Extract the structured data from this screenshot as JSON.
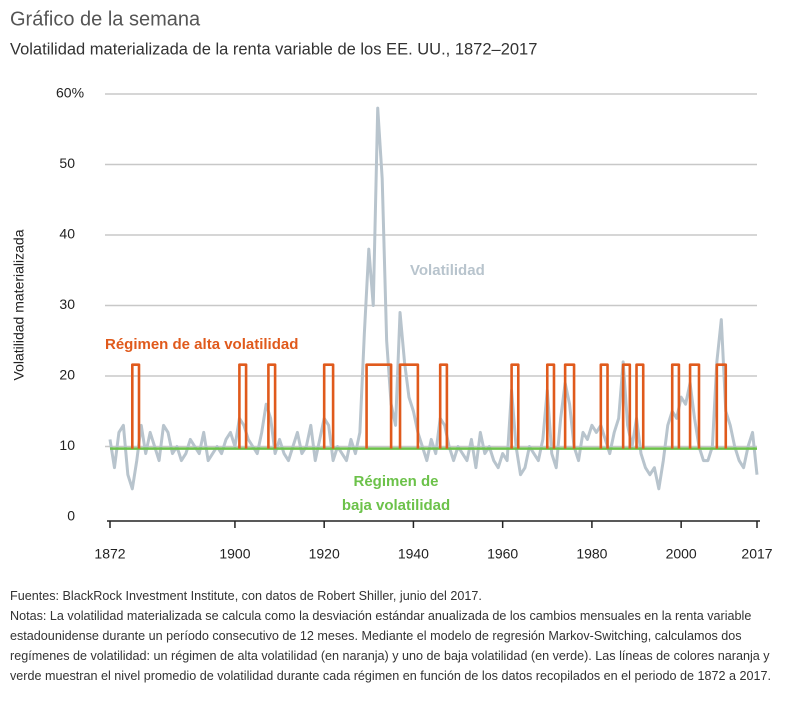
{
  "chart_data": {
    "type": "line",
    "title": "Gráfico de la semana",
    "subtitle": "Volatilidad materializada de la renta variable de los EE. UU., 1872–2017",
    "y_label": "Volatilidad materializada",
    "xlim": [
      1872,
      2017
    ],
    "xticks": [
      1872,
      1900,
      1920,
      1940,
      1960,
      1980,
      2000,
      2017
    ],
    "ylim": [
      0,
      60
    ],
    "yticks": [
      0,
      10,
      20,
      30,
      40,
      50,
      {
        "value": 60,
        "label": "60%"
      }
    ],
    "grid": true,
    "series": [
      {
        "name": "Volatilidad",
        "color": "#b8c4cd",
        "x": [
          1872,
          1873,
          1874,
          1875,
          1876,
          1877,
          1878,
          1879,
          1880,
          1881,
          1882,
          1883,
          1884,
          1885,
          1886,
          1887,
          1888,
          1889,
          1890,
          1891,
          1892,
          1893,
          1894,
          1895,
          1896,
          1897,
          1898,
          1899,
          1900,
          1901,
          1902,
          1903,
          1904,
          1905,
          1906,
          1907,
          1908,
          1909,
          1910,
          1911,
          1912,
          1913,
          1914,
          1915,
          1916,
          1917,
          1918,
          1919,
          1920,
          1921,
          1922,
          1923,
          1924,
          1925,
          1926,
          1927,
          1928,
          1929,
          1930,
          1931,
          1932,
          1933,
          1934,
          1935,
          1936,
          1937,
          1938,
          1939,
          1940,
          1941,
          1942,
          1943,
          1944,
          1945,
          1946,
          1947,
          1948,
          1949,
          1950,
          1951,
          1952,
          1953,
          1954,
          1955,
          1956,
          1957,
          1958,
          1959,
          1960,
          1961,
          1962,
          1963,
          1964,
          1965,
          1966,
          1967,
          1968,
          1969,
          1970,
          1971,
          1972,
          1973,
          1974,
          1975,
          1976,
          1977,
          1978,
          1979,
          1980,
          1981,
          1982,
          1983,
          1984,
          1985,
          1986,
          1987,
          1988,
          1989,
          1990,
          1991,
          1992,
          1993,
          1994,
          1995,
          1996,
          1997,
          1998,
          1999,
          2000,
          2001,
          2002,
          2003,
          2004,
          2005,
          2006,
          2007,
          2008,
          2009,
          2010,
          2011,
          2012,
          2013,
          2014,
          2015,
          2016,
          2017
        ],
        "values": [
          11,
          7,
          12,
          13,
          6,
          4,
          8,
          13,
          9,
          12,
          10,
          8,
          13,
          12,
          9,
          10,
          8,
          9,
          11,
          10,
          9,
          12,
          8,
          9,
          10,
          9,
          11,
          12,
          10,
          14,
          13,
          11,
          10,
          9,
          12,
          16,
          14,
          9,
          11,
          9,
          8,
          10,
          12,
          9,
          10,
          13,
          8,
          11,
          14,
          13,
          8,
          10,
          9,
          8,
          11,
          9,
          12,
          26,
          38,
          30,
          58,
          48,
          25,
          16,
          13,
          29,
          22,
          17,
          15,
          12,
          10,
          8,
          11,
          9,
          14,
          13,
          10,
          8,
          10,
          9,
          8,
          11,
          7,
          12,
          9,
          10,
          8,
          7,
          9,
          8,
          18,
          10,
          6,
          7,
          10,
          9,
          8,
          11,
          18,
          9,
          7,
          14,
          19,
          16,
          10,
          8,
          12,
          11,
          13,
          12,
          13,
          11,
          9,
          12,
          14,
          22,
          13,
          10,
          14,
          9,
          7,
          6,
          7,
          4,
          8,
          13,
          15,
          14,
          17,
          16,
          19,
          14,
          10,
          8,
          8,
          10,
          22,
          28,
          15,
          13,
          10,
          8,
          7,
          10,
          12,
          6
        ]
      },
      {
        "name": "Régimen de alta volatilidad",
        "color": "#e05a1c",
        "x": [
          1877,
          1877,
          1878.5,
          1878.5,
          null,
          1901,
          1901,
          1902.5,
          1902.5,
          null,
          1907.5,
          1907.5,
          1909,
          1909,
          null,
          1920,
          1920,
          1922,
          1922,
          null,
          1929.5,
          1929.5,
          1935,
          1935,
          null,
          1937,
          1937,
          1941,
          1941,
          null,
          1946,
          1946,
          1947.5,
          1947.5,
          null,
          1962,
          1962,
          1963.5,
          1963.5,
          null,
          1970,
          1970,
          1971.5,
          1971.5,
          null,
          1974,
          1974,
          1976,
          1976,
          null,
          1982,
          1982,
          1983.5,
          1983.5,
          null,
          1987,
          1987,
          1988.5,
          1988.5,
          null,
          1990,
          1990,
          1991.5,
          1991.5,
          null,
          1998,
          1998,
          1999.5,
          1999.5,
          null,
          2002,
          2002,
          2004,
          2004,
          null,
          2008,
          2008,
          2010,
          2010
        ],
        "values": [
          9.7,
          21.6,
          21.6,
          9.7,
          null,
          9.7,
          21.6,
          21.6,
          9.7,
          null,
          9.7,
          21.6,
          21.6,
          9.7,
          null,
          9.7,
          21.6,
          21.6,
          9.7,
          null,
          9.7,
          21.6,
          21.6,
          9.7,
          null,
          9.7,
          21.6,
          21.6,
          9.7,
          null,
          9.7,
          21.6,
          21.6,
          9.7,
          null,
          9.7,
          21.6,
          21.6,
          9.7,
          null,
          9.7,
          21.6,
          21.6,
          9.7,
          null,
          9.7,
          21.6,
          21.6,
          9.7,
          null,
          9.7,
          21.6,
          21.6,
          9.7,
          null,
          9.7,
          21.6,
          21.6,
          9.7,
          null,
          9.7,
          21.6,
          21.6,
          9.7,
          null,
          9.7,
          21.6,
          21.6,
          9.7,
          null,
          9.7,
          21.6,
          21.6,
          9.7,
          null,
          9.7,
          21.6,
          21.6,
          9.7
        ]
      },
      {
        "color": "#6cc24a",
        "x": [
          1872,
          2017
        ],
        "values": [
          9.7,
          9.7
        ]
      }
    ],
    "annotations": [
      "Régimen de",
      "baja volatilidad"
    ],
    "source": "Fuentes: BlackRock Investment Institute, con datos de Robert Shiller, junio del 2017.",
    "notes": "Notas: La volatilidad materializada se calcula como la desviación estándar anualizada de los cambios mensuales en la renta variable estadounidense durante un período consecutivo de 12 meses. Mediante el modelo de regresión Markov-Switching, calculamos dos regímenes de volatilidad: un régimen de alta volatilidad (en naranja) y uno de baja volatilidad (en verde). Las líneas de colores naranja y verde muestran el nivel promedio de volatilidad durante cada régimen en función de los datos recopilados en el periodo de 1872 a 2017."
  }
}
